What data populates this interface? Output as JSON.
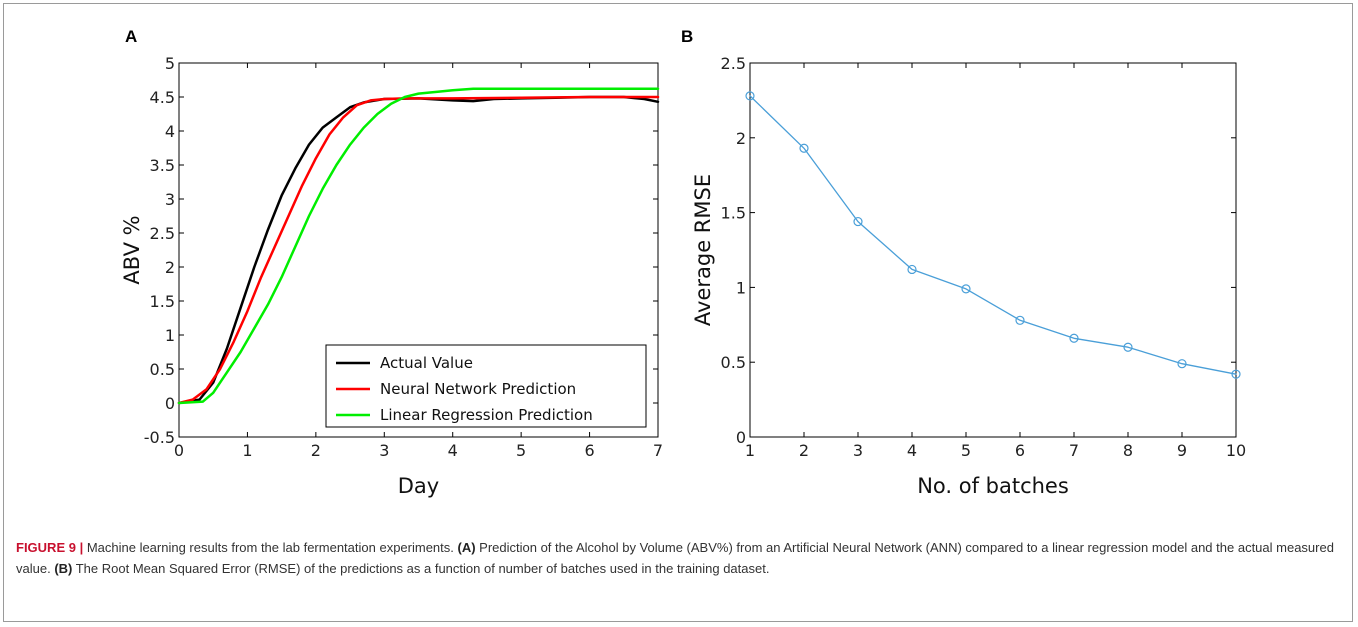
{
  "chart_data": [
    {
      "panel": "A",
      "type": "line",
      "xlabel": "Day",
      "ylabel": "ABV %",
      "xlim": [
        0,
        7
      ],
      "ylim": [
        -0.5,
        5
      ],
      "xticks": [
        "0",
        "1",
        "2",
        "3",
        "4",
        "5",
        "6",
        "7"
      ],
      "yticks": [
        "-0.5",
        "0",
        "0.5",
        "1",
        "1.5",
        "2",
        "2.5",
        "3",
        "3.5",
        "4",
        "4.5",
        "5"
      ],
      "legend_position": "bottom-right",
      "grid": false,
      "series": [
        {
          "name": "Actual Value",
          "color": "#000000",
          "x": [
            0,
            0.3,
            0.5,
            0.7,
            0.9,
            1.1,
            1.3,
            1.5,
            1.7,
            1.9,
            2.1,
            2.3,
            2.5,
            2.7,
            3.0,
            3.5,
            4.0,
            4.3,
            4.6,
            5.0,
            5.5,
            6.0,
            6.5,
            6.8,
            7.0
          ],
          "y": [
            0,
            0.05,
            0.3,
            0.8,
            1.4,
            2.0,
            2.55,
            3.05,
            3.45,
            3.8,
            4.05,
            4.2,
            4.35,
            4.42,
            4.47,
            4.48,
            4.45,
            4.44,
            4.47,
            4.48,
            4.49,
            4.5,
            4.5,
            4.47,
            4.43
          ]
        },
        {
          "name": "Neural Network Prediction",
          "color": "#ff0000",
          "x": [
            0,
            0.2,
            0.4,
            0.6,
            0.8,
            1.0,
            1.2,
            1.4,
            1.6,
            1.8,
            2.0,
            2.2,
            2.4,
            2.6,
            2.8,
            3.0,
            3.3,
            3.6,
            4.0,
            5.0,
            6.0,
            7.0
          ],
          "y": [
            0,
            0.05,
            0.2,
            0.5,
            0.9,
            1.35,
            1.85,
            2.3,
            2.75,
            3.2,
            3.6,
            3.95,
            4.2,
            4.38,
            4.45,
            4.47,
            4.48,
            4.48,
            4.48,
            4.49,
            4.5,
            4.5
          ]
        },
        {
          "name": "Linear Regression Prediction",
          "color": "#00ee00",
          "x": [
            0,
            0.35,
            0.5,
            0.7,
            0.9,
            1.1,
            1.3,
            1.5,
            1.7,
            1.9,
            2.1,
            2.3,
            2.5,
            2.7,
            2.9,
            3.1,
            3.3,
            3.5,
            3.8,
            4.0,
            4.3,
            5.0,
            6.0,
            7.0
          ],
          "y": [
            0,
            0.02,
            0.15,
            0.45,
            0.75,
            1.1,
            1.45,
            1.85,
            2.3,
            2.75,
            3.15,
            3.5,
            3.8,
            4.05,
            4.25,
            4.4,
            4.5,
            4.55,
            4.58,
            4.6,
            4.62,
            4.62,
            4.62,
            4.62
          ]
        }
      ]
    },
    {
      "panel": "B",
      "type": "line",
      "xlabel": "No. of batches",
      "ylabel": "Average RMSE",
      "xlim": [
        1,
        10
      ],
      "ylim": [
        0,
        2.5
      ],
      "xticks": [
        "1",
        "2",
        "3",
        "4",
        "5",
        "6",
        "7",
        "8",
        "9",
        "10"
      ],
      "yticks": [
        "0",
        "0.5",
        "1",
        "1.5",
        "2",
        "2.5"
      ],
      "grid": false,
      "series": [
        {
          "color": "#4a9fd8",
          "marker": "circle",
          "x": [
            1,
            2,
            3,
            4,
            5,
            6,
            7,
            8,
            9,
            10
          ],
          "y": [
            2.28,
            1.93,
            1.44,
            1.12,
            0.99,
            0.78,
            0.66,
            0.6,
            0.49,
            0.42
          ]
        }
      ]
    }
  ],
  "caption": {
    "label": "FIGURE 9 |",
    "intro": " Machine learning results from the lab fermentation experiments. ",
    "a_label": "(A)",
    "a_text": " Prediction of the Alcohol by Volume (ABV%) from an Artificial Neural Network (ANN) compared to a linear regression model and the actual measured value. ",
    "b_label": "(B)",
    "b_text": " The Root Mean Squared Error (RMSE) of the predictions as a function of number of batches used in the training dataset."
  }
}
